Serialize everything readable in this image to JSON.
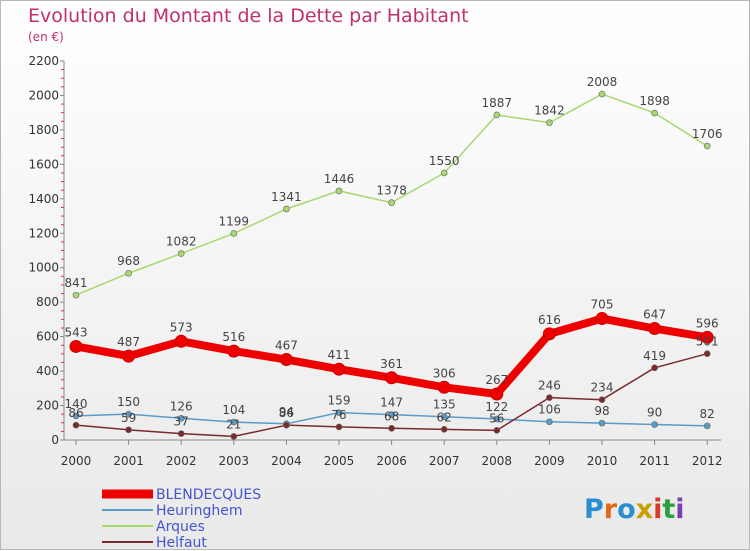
{
  "title": "Evolution du Montant de la Dette par Habitant",
  "subtitle": "(en €)",
  "brand": {
    "letters": [
      "P",
      "r",
      "o",
      "x",
      "i",
      "t",
      "i"
    ],
    "colors": [
      "#2a8fd0",
      "#e06a1a",
      "#2a8fd0",
      "#c8a000",
      "#d83a2a",
      "#2aa040",
      "#7a3fb0"
    ]
  },
  "chart_data": {
    "type": "line",
    "x": [
      "2000",
      "2001",
      "2002",
      "2003",
      "2004",
      "2005",
      "2006",
      "2007",
      "2008",
      "2009",
      "2010",
      "2011",
      "2012"
    ],
    "ylim": [
      0,
      2200
    ],
    "yticks": [
      "0",
      "200",
      "400",
      "600",
      "800",
      "1000",
      "1200",
      "1400",
      "1600",
      "1800",
      "2000",
      "2200"
    ],
    "grid": false,
    "legend": "bottom-left",
    "series": [
      {
        "name": "BLENDECQUES",
        "color": "#ee0000",
        "thick": true,
        "values": [
          543,
          487,
          573,
          516,
          467,
          411,
          361,
          306,
          267,
          616,
          705,
          647,
          596
        ]
      },
      {
        "name": "Heuringhem",
        "color": "#5b9bc8",
        "thick": false,
        "values": [
          140,
          150,
          126,
          104,
          94,
          159,
          147,
          135,
          122,
          106,
          98,
          90,
          82
        ]
      },
      {
        "name": "Arques",
        "color": "#a8d870",
        "thick": false,
        "values": [
          841,
          968,
          1082,
          1199,
          1341,
          1446,
          1378,
          1550,
          1887,
          1842,
          2008,
          1898,
          1706
        ]
      },
      {
        "name": "Helfaut",
        "color": "#7a2a2a",
        "thick": false,
        "values": [
          86,
          59,
          37,
          21,
          86,
          76,
          68,
          62,
          56,
          246,
          234,
          419,
          501
        ]
      }
    ],
    "labels": {
      "BLENDECQUES": [
        "543",
        "487",
        "573",
        "516",
        "467",
        "411",
        "361",
        "306",
        "267",
        "616",
        "705",
        "647",
        "596"
      ],
      "Heuringhem": [
        "140",
        "150",
        "126",
        "104",
        "94",
        "159",
        "147",
        "135",
        "122",
        "106",
        "98",
        "90",
        "82"
      ],
      "Arques": [
        "841",
        "968",
        "1082",
        "1199",
        "1341",
        "1446",
        "1378",
        "1550",
        "1887",
        "1842",
        "2008",
        "1898",
        "1706"
      ],
      "Helfaut": [
        "86",
        "59",
        "37",
        "21",
        "86",
        "76",
        "68",
        "62",
        "56",
        "246",
        "234",
        "419",
        "501"
      ]
    }
  }
}
